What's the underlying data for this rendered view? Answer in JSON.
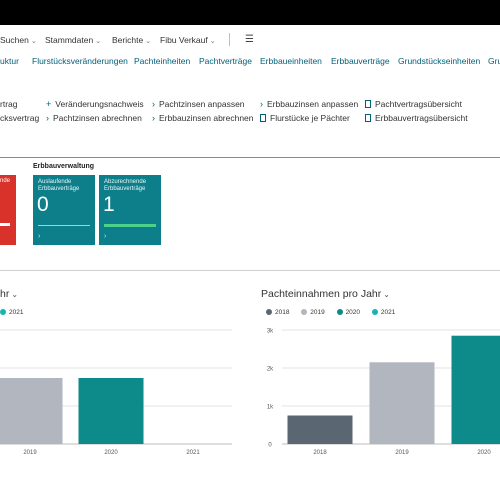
{
  "menu": {
    "items": [
      {
        "label": "Suchen"
      },
      {
        "label": "Stammdaten"
      },
      {
        "label": "Berichte"
      },
      {
        "label": "Fibu Verkauf"
      }
    ]
  },
  "nav": {
    "items": [
      {
        "label": "uktur"
      },
      {
        "label": "Flurstücksveränderungen"
      },
      {
        "label": "Pachteinheiten"
      },
      {
        "label": "Pachtverträge"
      },
      {
        "label": "Erbbaueinheiten"
      },
      {
        "label": "Erbbauverträge"
      },
      {
        "label": "Grundstückseinheiten"
      },
      {
        "label": "Gru"
      }
    ]
  },
  "actions": {
    "items": [
      {
        "label": "rtrag",
        "icon": "none"
      },
      {
        "label": "cksvertrag",
        "icon": "none"
      },
      {
        "label": "Veränderungsnachweis",
        "icon": "plus-icon"
      },
      {
        "label": "Pachtzinsen abrechnen",
        "icon": "chevron-right-icon"
      },
      {
        "label": "Pachtzinsen anpassen",
        "icon": "chevron-right-icon"
      },
      {
        "label": "Erbbauzinsen abrechnen",
        "icon": "chevron-right-icon"
      },
      {
        "label": "Erbbauzinsen anpassen",
        "icon": "chevron-right-icon"
      },
      {
        "label": "Flurstücke je Pächter",
        "icon": "document-icon"
      },
      {
        "label": "Pachtvertragsübersicht",
        "icon": "document-icon"
      },
      {
        "label": "Erbbauvertragsübersicht",
        "icon": "document-icon"
      }
    ]
  },
  "cues": {
    "section_title": "Erbbauverwaltung",
    "red_tile": {
      "label": "nde",
      "color": "#d8322b"
    },
    "tiles": [
      {
        "label": "Auslaufende Erbbauverträge",
        "value": "0"
      },
      {
        "label": "Abzurechnende Erbbauverträge",
        "value": "1"
      }
    ],
    "tile_color": "#0d7f8a"
  },
  "chart_data": [
    {
      "type": "bar",
      "title": "hr",
      "legend": [
        {
          "name": "2021",
          "color": "#16b5b5"
        }
      ],
      "categories": [
        "2019",
        "2020",
        "2021"
      ],
      "series": [
        {
          "values": [
            1.65,
            1.65,
            0
          ],
          "colors": [
            "#b1b6bf",
            "#0d8a8a",
            "#16b5b5"
          ]
        }
      ],
      "ylim": [
        0,
        2.85
      ],
      "grid": true
    },
    {
      "type": "bar",
      "title": "Pachteinnahmen pro Jahr",
      "legend": [
        {
          "name": "2018",
          "color": "#5b6673"
        },
        {
          "name": "2019",
          "color": "#b1b6bf"
        },
        {
          "name": "2020",
          "color": "#0d8a8a"
        },
        {
          "name": "2021",
          "color": "#16b5b5"
        }
      ],
      "categories": [
        "2018",
        "2019",
        "2020"
      ],
      "series": [
        {
          "values": [
            750,
            2150,
            2850
          ],
          "colors": [
            "#5b6673",
            "#b1b6bf",
            "#0d8a8a"
          ]
        }
      ],
      "ylim": [
        0,
        3000
      ],
      "yticks": [
        "0",
        "1k",
        "2k",
        "3k"
      ],
      "grid": true
    }
  ]
}
